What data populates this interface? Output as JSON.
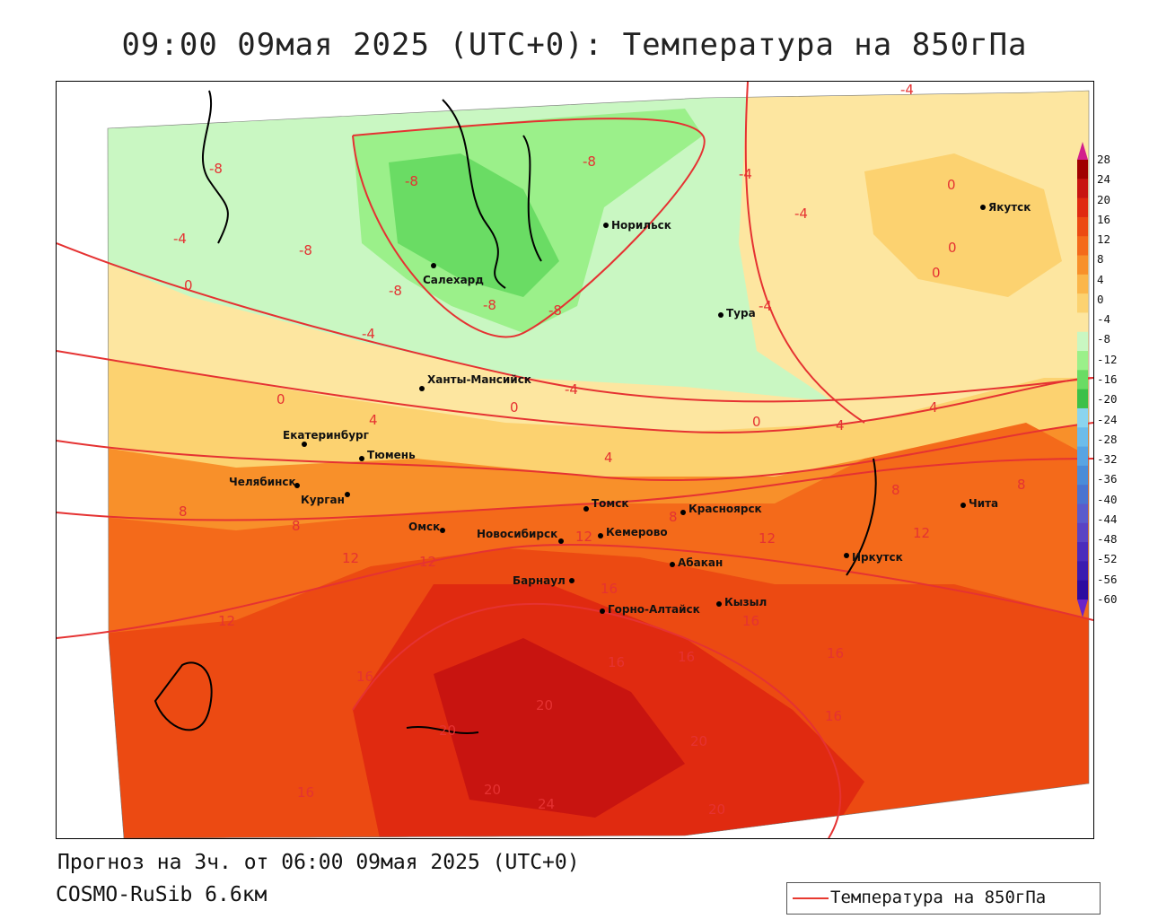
{
  "title": "09:00 09мая 2025 (UTC+0): Температура на 850гПа",
  "footer": {
    "forecast": "Прогноз на 3ч. от 06:00 09мая 2025 (UTC+0)",
    "model": "COSMO-RuSib 6.6км"
  },
  "legend": {
    "label": "Температура на 850гПа",
    "line_color": "#e8392f"
  },
  "colorbar": {
    "ticks": [
      "28",
      "24",
      "20",
      "16",
      "12",
      "8",
      "4",
      "0",
      "-4",
      "-8",
      "-12",
      "-16",
      "-20",
      "-24",
      "-28",
      "-32",
      "-36",
      "-40",
      "-44",
      "-48",
      "-52",
      "-56",
      "-60"
    ],
    "colors": [
      "#a00000",
      "#c81410",
      "#e02a10",
      "#ec4a12",
      "#f46a1a",
      "#f8902a",
      "#fbb64a",
      "#fcd270",
      "#fde6a0",
      "#c9f7c2",
      "#9bf08a",
      "#6adc64",
      "#3cc048",
      "#8ad4ee",
      "#6cbcea",
      "#58a4e2",
      "#4a8cd8",
      "#4a74d0",
      "#5a5ccc",
      "#5a44c4",
      "#4a2cbc",
      "#3a1cb0",
      "#2c0ca0"
    ]
  },
  "isotherm_labels": [
    "-4",
    "-8",
    "-8",
    "-8",
    "-8",
    "-8",
    "-8",
    "-8",
    "-4",
    "-4",
    "-4",
    "-4",
    "-4",
    "-4",
    "0",
    "0",
    "0",
    "0",
    "0",
    "0",
    "0",
    "4",
    "4",
    "4",
    "4",
    "8",
    "8",
    "8",
    "8",
    "8",
    "12",
    "12",
    "12",
    "12",
    "12",
    "12",
    "16",
    "16",
    "16",
    "16",
    "16",
    "16",
    "16",
    "16",
    "20",
    "20",
    "20",
    "20",
    "20",
    "24"
  ],
  "cities": [
    "Якутск",
    "Норильск",
    "Салехард",
    "Тура",
    "Ханты-Мансийск",
    "Екатеринбург",
    "Тюмень",
    "Челябинск",
    "Курган",
    "Омск",
    "Новосибирск",
    "Томск",
    "Кемерово",
    "Красноярск",
    "Абакан",
    "Барнаул",
    "Горно-Алтайск",
    "Кызыл",
    "Иркутск",
    "Чита"
  ]
}
